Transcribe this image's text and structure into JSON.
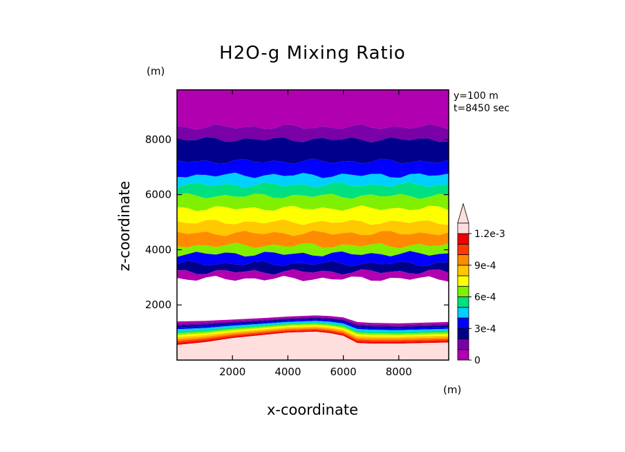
{
  "chart_data": {
    "type": "heatmap",
    "title": "H2O-g Mixing Ratio",
    "xlabel": "x-coordinate",
    "ylabel": "z-coordinate",
    "x_unit": "(m)",
    "y_unit": "(m)",
    "annotations": [
      "y=100 m",
      "t=8450 sec"
    ],
    "xlim": [
      0,
      9800
    ],
    "ylim": [
      0,
      9800
    ],
    "x_ticks": [
      2000,
      4000,
      6000,
      8000
    ],
    "y_ticks": [
      2000,
      4000,
      6000,
      8000
    ],
    "grid": false,
    "colorbar": {
      "levels": [
        0,
        0.0001,
        0.0002,
        0.0003,
        0.0004,
        0.0005,
        0.0006,
        0.0007,
        0.0008,
        0.0009,
        0.001,
        0.0011,
        0.0012
      ],
      "tick_labels": [
        "0",
        "3e-4",
        "6e-4",
        "9e-4",
        "1.2e-3"
      ],
      "colors": [
        "#b000b0",
        "#7a00a8",
        "#00008c",
        "#0000ff",
        "#00d0ff",
        "#00e080",
        "#80f000",
        "#ffff00",
        "#ffc800",
        "#ff8c00",
        "#ff3a00",
        "#f00000",
        "#ffdede"
      ],
      "extend": "max",
      "placement": "right"
    },
    "bands": [
      {
        "z_low": 8450,
        "z_high": 9800,
        "level": 0
      },
      {
        "z_low": 8000,
        "z_high": 8450,
        "level": 1
      },
      {
        "z_low": 7200,
        "z_high": 8000,
        "level": 2
      },
      {
        "z_low": 6700,
        "z_high": 7200,
        "level": 3
      },
      {
        "z_low": 6350,
        "z_high": 6700,
        "level": 4
      },
      {
        "z_low": 5950,
        "z_high": 6350,
        "level": 5
      },
      {
        "z_low": 5500,
        "z_high": 5950,
        "level": 6
      },
      {
        "z_low": 5000,
        "z_high": 5500,
        "level": 7
      },
      {
        "z_low": 4600,
        "z_high": 5000,
        "level": 8
      },
      {
        "z_low": 4150,
        "z_high": 4600,
        "level": 9
      },
      {
        "z_low": 3850,
        "z_high": 4150,
        "level": 6
      },
      {
        "z_low": 3500,
        "z_high": 3850,
        "level": 3
      },
      {
        "z_low": 3200,
        "z_high": 3500,
        "level": 2
      },
      {
        "z_low": 2950,
        "z_high": 3200,
        "level": 0
      },
      {
        "z_low": 1400,
        "z_high": 2950,
        "level": -1
      }
    ],
    "lower_layer_profile": {
      "x": [
        0,
        1000,
        2000,
        3000,
        4000,
        5000,
        5500,
        6000,
        6500,
        7000,
        8000,
        9000,
        9800
      ],
      "top_z": [
        1400,
        1420,
        1470,
        1520,
        1580,
        1620,
        1600,
        1550,
        1380,
        1350,
        1330,
        1360,
        1380
      ],
      "bottom_z": [
        550,
        650,
        800,
        900,
        1000,
        1030,
        980,
        880,
        620,
        600,
        600,
        620,
        640
      ]
    }
  }
}
